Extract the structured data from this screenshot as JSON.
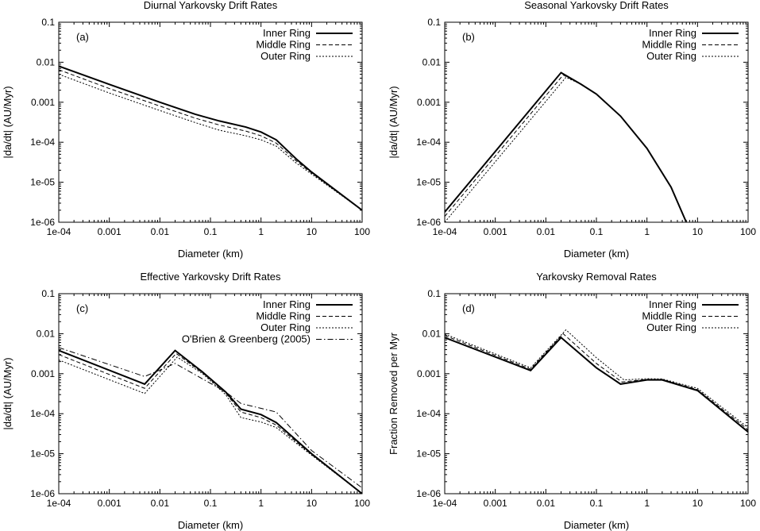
{
  "chart_data": [
    {
      "type": "line",
      "panel_label": "(a)",
      "title": "Diurnal Yarkovsky Drift Rates",
      "xlabel": "Diameter (km)",
      "ylabel": "|da/dt| (AU/Myr)",
      "xscale": "log",
      "yscale": "log",
      "xlim": [
        0.0001,
        100
      ],
      "ylim": [
        1e-06,
        0.1
      ],
      "x_ticks": [
        "1e-04",
        "0.001",
        "0.01",
        "0.1",
        "1",
        "10",
        "100"
      ],
      "y_ticks": [
        "1e-06",
        "1e-05",
        "1e-04",
        "0.001",
        "0.01",
        "0.1"
      ],
      "legend": "top-right",
      "series": [
        {
          "name": "Inner Ring",
          "style": "solid",
          "x": [
            0.0001,
            0.001,
            0.01,
            0.05,
            0.15,
            0.5,
            1,
            2,
            5,
            10,
            100
          ],
          "y": [
            0.008,
            0.0028,
            0.001,
            0.0005,
            0.00034,
            0.00024,
            0.00018,
            0.000115,
            3.8e-05,
            1.8e-05,
            2e-06
          ]
        },
        {
          "name": "Middle Ring",
          "style": "dashed",
          "x": [
            0.0001,
            0.001,
            0.01,
            0.05,
            0.15,
            0.5,
            1,
            2,
            5,
            10,
            100
          ],
          "y": [
            0.0065,
            0.0022,
            0.0008,
            0.0004,
            0.00027,
            0.00019,
            0.000145,
            9.5e-05,
            3.4e-05,
            1.7e-05,
            2e-06
          ]
        },
        {
          "name": "Outer Ring",
          "style": "dotted",
          "x": [
            0.0001,
            0.001,
            0.01,
            0.05,
            0.15,
            0.5,
            1,
            2,
            5,
            10,
            100
          ],
          "y": [
            0.005,
            0.0017,
            0.00062,
            0.00031,
            0.0002,
            0.000145,
            0.000115,
            8e-05,
            3e-05,
            1.6e-05,
            2e-06
          ]
        }
      ]
    },
    {
      "type": "line",
      "panel_label": "(b)",
      "title": "Seasonal Yarkovsky Drift Rates",
      "xlabel": "Diameter (km)",
      "ylabel": "|da/dt| (AU/Myr)",
      "xscale": "log",
      "yscale": "log",
      "xlim": [
        0.0001,
        100
      ],
      "ylim": [
        1e-06,
        0.1
      ],
      "x_ticks": [
        "1e-04",
        "0.001",
        "0.01",
        "0.1",
        "1",
        "10",
        "100"
      ],
      "y_ticks": [
        "1e-06",
        "1e-05",
        "1e-04",
        "0.001",
        "0.01",
        "0.1"
      ],
      "legend": "top-right",
      "series": [
        {
          "name": "Inner Ring",
          "style": "solid",
          "x": [
            0.0001,
            0.02,
            0.05,
            0.1,
            0.3,
            1,
            3,
            6
          ],
          "y": [
            1.8e-06,
            0.0055,
            0.0028,
            0.0016,
            0.00045,
            7e-05,
            7.5e-06,
            1e-06
          ]
        },
        {
          "name": "Middle Ring",
          "style": "dashed",
          "x": [
            0.0001,
            0.022,
            0.05,
            0.1,
            0.3,
            1,
            3,
            6
          ],
          "y": [
            1.4e-06,
            0.0048,
            0.0028,
            0.0016,
            0.00045,
            7e-05,
            7.5e-06,
            1e-06
          ]
        },
        {
          "name": "Outer Ring",
          "style": "dotted",
          "x": [
            0.0001,
            0.025,
            0.05,
            0.1,
            0.3,
            1,
            3,
            6
          ],
          "y": [
            1e-06,
            0.0042,
            0.0028,
            0.0016,
            0.00045,
            7e-05,
            7.5e-06,
            1e-06
          ]
        }
      ]
    },
    {
      "type": "line",
      "panel_label": "(c)",
      "title": "Effective Yarkovsky Drift Rates",
      "xlabel": "Diameter (km)",
      "ylabel": "|da/dt| (AU/Myr)",
      "xscale": "log",
      "yscale": "log",
      "xlim": [
        0.0001,
        100
      ],
      "ylim": [
        1e-06,
        0.1
      ],
      "x_ticks": [
        "1e-04",
        "0.001",
        "0.01",
        "0.1",
        "1",
        "10",
        "100"
      ],
      "y_ticks": [
        "1e-06",
        "1e-05",
        "1e-04",
        "0.001",
        "0.01",
        "0.1"
      ],
      "legend": "top-right",
      "series": [
        {
          "name": "Inner Ring",
          "style": "solid",
          "x": [
            0.0001,
            0.005,
            0.02,
            0.07,
            0.2,
            0.4,
            1,
            2,
            10,
            100
          ],
          "y": [
            0.0038,
            0.00055,
            0.0038,
            0.0011,
            0.00035,
            0.00013,
            9.5e-05,
            6e-05,
            1e-05,
            1e-06
          ]
        },
        {
          "name": "Middle Ring",
          "style": "dashed",
          "x": [
            0.0001,
            0.005,
            0.021,
            0.07,
            0.2,
            0.4,
            1,
            2,
            10,
            100
          ],
          "y": [
            0.003,
            0.00043,
            0.0032,
            0.00105,
            0.00033,
            0.00011,
            8e-05,
            5.2e-05,
            9.5e-06,
            1e-06
          ]
        },
        {
          "name": "Outer Ring",
          "style": "dotted",
          "x": [
            0.0001,
            0.005,
            0.022,
            0.07,
            0.2,
            0.4,
            1,
            2,
            10,
            100
          ],
          "y": [
            0.0022,
            0.00032,
            0.0026,
            0.001,
            0.0003,
            8e-05,
            6.2e-05,
            4.5e-05,
            9.2e-06,
            1e-06
          ]
        },
        {
          "name": "O'Brien & Greenberg (2005)",
          "style": "dashdot",
          "x": [
            0.0001,
            0.005,
            0.02,
            0.2,
            0.4,
            2,
            10,
            100
          ],
          "y": [
            0.0045,
            0.00085,
            0.0018,
            0.00035,
            0.00018,
            0.00011,
            1.2e-05,
            1.4e-06
          ]
        }
      ]
    },
    {
      "type": "line",
      "panel_label": "(d)",
      "title": "Yarkovsky Removal Rates",
      "xlabel": "Diameter (km)",
      "ylabel": "Fraction Removed per Myr",
      "xscale": "log",
      "yscale": "log",
      "xlim": [
        0.0001,
        100
      ],
      "ylim": [
        1e-06,
        0.1
      ],
      "x_ticks": [
        "1e-04",
        "0.001",
        "0.01",
        "0.1",
        "1",
        "10",
        "100"
      ],
      "y_ticks": [
        "1e-06",
        "1e-05",
        "1e-04",
        "0.001",
        "0.01",
        "0.1"
      ],
      "legend": "top-right",
      "series": [
        {
          "name": "Inner Ring",
          "style": "solid",
          "x": [
            0.0001,
            0.005,
            0.02,
            0.1,
            0.3,
            1,
            2,
            10,
            100
          ],
          "y": [
            0.008,
            0.0012,
            0.008,
            0.0014,
            0.00055,
            0.0007,
            0.0007,
            0.00038,
            3.5e-05
          ]
        },
        {
          "name": "Middle Ring",
          "style": "dashed",
          "x": [
            0.0001,
            0.005,
            0.022,
            0.1,
            0.32,
            1,
            2,
            10,
            100
          ],
          "y": [
            0.009,
            0.0013,
            0.01,
            0.0018,
            0.00062,
            0.00072,
            0.00072,
            0.0004,
            4e-05
          ]
        },
        {
          "name": "Outer Ring",
          "style": "dotted",
          "x": [
            0.0001,
            0.005,
            0.025,
            0.1,
            0.35,
            1,
            2,
            10,
            100
          ],
          "y": [
            0.0098,
            0.0014,
            0.0125,
            0.0025,
            0.0007,
            0.00075,
            0.00074,
            0.00043,
            4.5e-05
          ]
        }
      ]
    }
  ]
}
